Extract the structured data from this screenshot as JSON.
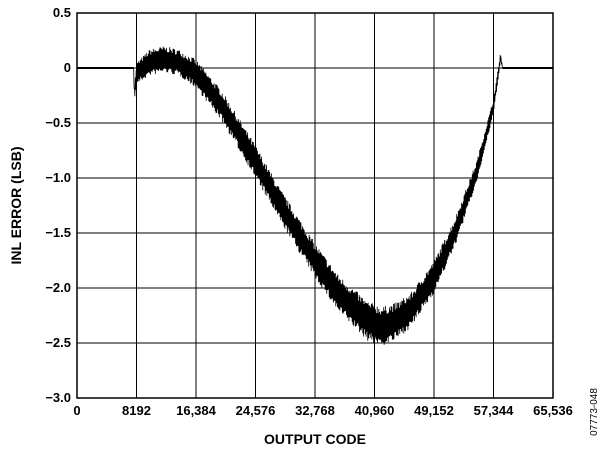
{
  "chart_data": {
    "type": "line",
    "title": "",
    "xlabel": "OUTPUT CODE",
    "ylabel": "INL ERROR (LSB)",
    "figure_id": "07773-048",
    "xlim": [
      0,
      65536
    ],
    "ylim": [
      -3.0,
      0.5
    ],
    "grid": true,
    "x_ticks": [
      0,
      8192,
      16384,
      24576,
      32768,
      40960,
      49152,
      57344,
      65536
    ],
    "x_tick_labels": [
      "0",
      "8192",
      "16,384",
      "24,576",
      "32,768",
      "40,960",
      "49,152",
      "57,344",
      "65,536"
    ],
    "y_ticks": [
      0.5,
      0,
      -0.5,
      -1.0,
      -1.5,
      -2.0,
      -2.5,
      -3.0
    ],
    "y_tick_labels": [
      "0.5",
      "0",
      "−0.5",
      "−1.0",
      "−1.5",
      "−2.0",
      "−2.5",
      "−3.0"
    ],
    "series": [
      {
        "color": "#000000",
        "x": [
          0,
          7800,
          7900,
          8192,
          10000,
          12000,
          14000,
          16384,
          20000,
          24576,
          28000,
          32768,
          36000,
          40000,
          42000,
          44000,
          46000,
          49152,
          52000,
          55000,
          57344,
          58000,
          58300,
          58600,
          60000,
          65536
        ],
        "y": [
          0.0,
          0.0,
          -0.25,
          -0.05,
          0.05,
          0.08,
          0.05,
          -0.05,
          -0.35,
          -0.85,
          -1.25,
          -1.75,
          -2.05,
          -2.3,
          -2.35,
          -2.3,
          -2.2,
          -1.9,
          -1.5,
          -0.95,
          -0.35,
          -0.05,
          0.1,
          0.0,
          0.0,
          0.0
        ],
        "band_halfwidth": [
          0.0,
          0.0,
          0.08,
          0.1,
          0.12,
          0.12,
          0.12,
          0.13,
          0.14,
          0.15,
          0.15,
          0.16,
          0.17,
          0.18,
          0.18,
          0.17,
          0.16,
          0.15,
          0.13,
          0.1,
          0.07,
          0.05,
          0.05,
          0.0,
          0.0,
          0.0
        ]
      }
    ]
  }
}
